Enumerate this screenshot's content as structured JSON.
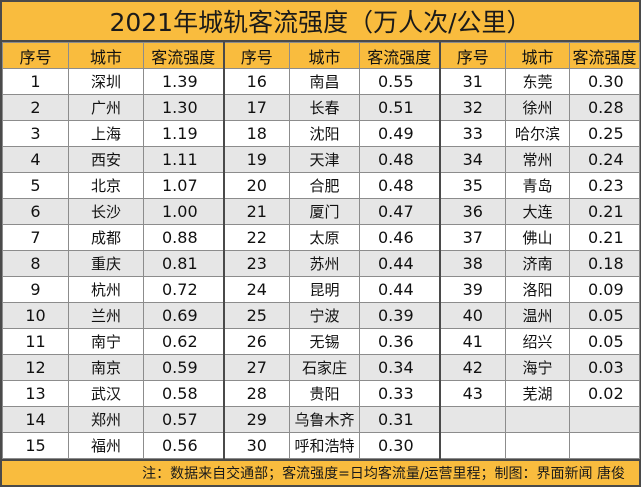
{
  "title": "2021年城轨客流强度（万人次/公里）",
  "headers": {
    "rank": "序号",
    "city": "城市",
    "value": "客流强度"
  },
  "rows": [
    [
      {
        "rank": "1",
        "city": "深圳",
        "value": "1.39"
      },
      {
        "rank": "16",
        "city": "南昌",
        "value": "0.55"
      },
      {
        "rank": "31",
        "city": "东莞",
        "value": "0.30"
      }
    ],
    [
      {
        "rank": "2",
        "city": "广州",
        "value": "1.30"
      },
      {
        "rank": "17",
        "city": "长春",
        "value": "0.51"
      },
      {
        "rank": "32",
        "city": "徐州",
        "value": "0.28"
      }
    ],
    [
      {
        "rank": "3",
        "city": "上海",
        "value": "1.19"
      },
      {
        "rank": "18",
        "city": "沈阳",
        "value": "0.49"
      },
      {
        "rank": "33",
        "city": "哈尔滨",
        "value": "0.25"
      }
    ],
    [
      {
        "rank": "4",
        "city": "西安",
        "value": "1.11"
      },
      {
        "rank": "19",
        "city": "天津",
        "value": "0.48"
      },
      {
        "rank": "34",
        "city": "常州",
        "value": "0.24"
      }
    ],
    [
      {
        "rank": "5",
        "city": "北京",
        "value": "1.07"
      },
      {
        "rank": "20",
        "city": "合肥",
        "value": "0.48"
      },
      {
        "rank": "35",
        "city": "青岛",
        "value": "0.23"
      }
    ],
    [
      {
        "rank": "6",
        "city": "长沙",
        "value": "1.00"
      },
      {
        "rank": "21",
        "city": "厦门",
        "value": "0.47"
      },
      {
        "rank": "36",
        "city": "大连",
        "value": "0.21"
      }
    ],
    [
      {
        "rank": "7",
        "city": "成都",
        "value": "0.88"
      },
      {
        "rank": "22",
        "city": "太原",
        "value": "0.46"
      },
      {
        "rank": "37",
        "city": "佛山",
        "value": "0.21"
      }
    ],
    [
      {
        "rank": "8",
        "city": "重庆",
        "value": "0.81"
      },
      {
        "rank": "23",
        "city": "苏州",
        "value": "0.44"
      },
      {
        "rank": "38",
        "city": "济南",
        "value": "0.18"
      }
    ],
    [
      {
        "rank": "9",
        "city": "杭州",
        "value": "0.72"
      },
      {
        "rank": "24",
        "city": "昆明",
        "value": "0.44"
      },
      {
        "rank": "39",
        "city": "洛阳",
        "value": "0.09"
      }
    ],
    [
      {
        "rank": "10",
        "city": "兰州",
        "value": "0.69"
      },
      {
        "rank": "25",
        "city": "宁波",
        "value": "0.39"
      },
      {
        "rank": "40",
        "city": "温州",
        "value": "0.05"
      }
    ],
    [
      {
        "rank": "11",
        "city": "南宁",
        "value": "0.62"
      },
      {
        "rank": "26",
        "city": "无锡",
        "value": "0.36"
      },
      {
        "rank": "41",
        "city": "绍兴",
        "value": "0.05"
      }
    ],
    [
      {
        "rank": "12",
        "city": "南京",
        "value": "0.59"
      },
      {
        "rank": "27",
        "city": "石家庄",
        "value": "0.34"
      },
      {
        "rank": "42",
        "city": "海宁",
        "value": "0.03"
      }
    ],
    [
      {
        "rank": "13",
        "city": "武汉",
        "value": "0.58"
      },
      {
        "rank": "28",
        "city": "贵阳",
        "value": "0.33"
      },
      {
        "rank": "43",
        "city": "芜湖",
        "value": "0.02"
      }
    ],
    [
      {
        "rank": "14",
        "city": "郑州",
        "value": "0.57"
      },
      {
        "rank": "29",
        "city": "乌鲁木齐",
        "value": "0.31"
      },
      {
        "rank": "",
        "city": "",
        "value": ""
      }
    ],
    [
      {
        "rank": "15",
        "city": "福州",
        "value": "0.56"
      },
      {
        "rank": "30",
        "city": "呼和浩特",
        "value": "0.30"
      },
      {
        "rank": "",
        "city": "",
        "value": ""
      }
    ]
  ],
  "footer": "注：数据来自交通部；客流强度=日均客流量/运营里程；制图：界面新闻 唐俊",
  "colors": {
    "header_bg": "#f9bc3e",
    "stripe": "#e6e6e6",
    "border": "#4a4a4a"
  }
}
